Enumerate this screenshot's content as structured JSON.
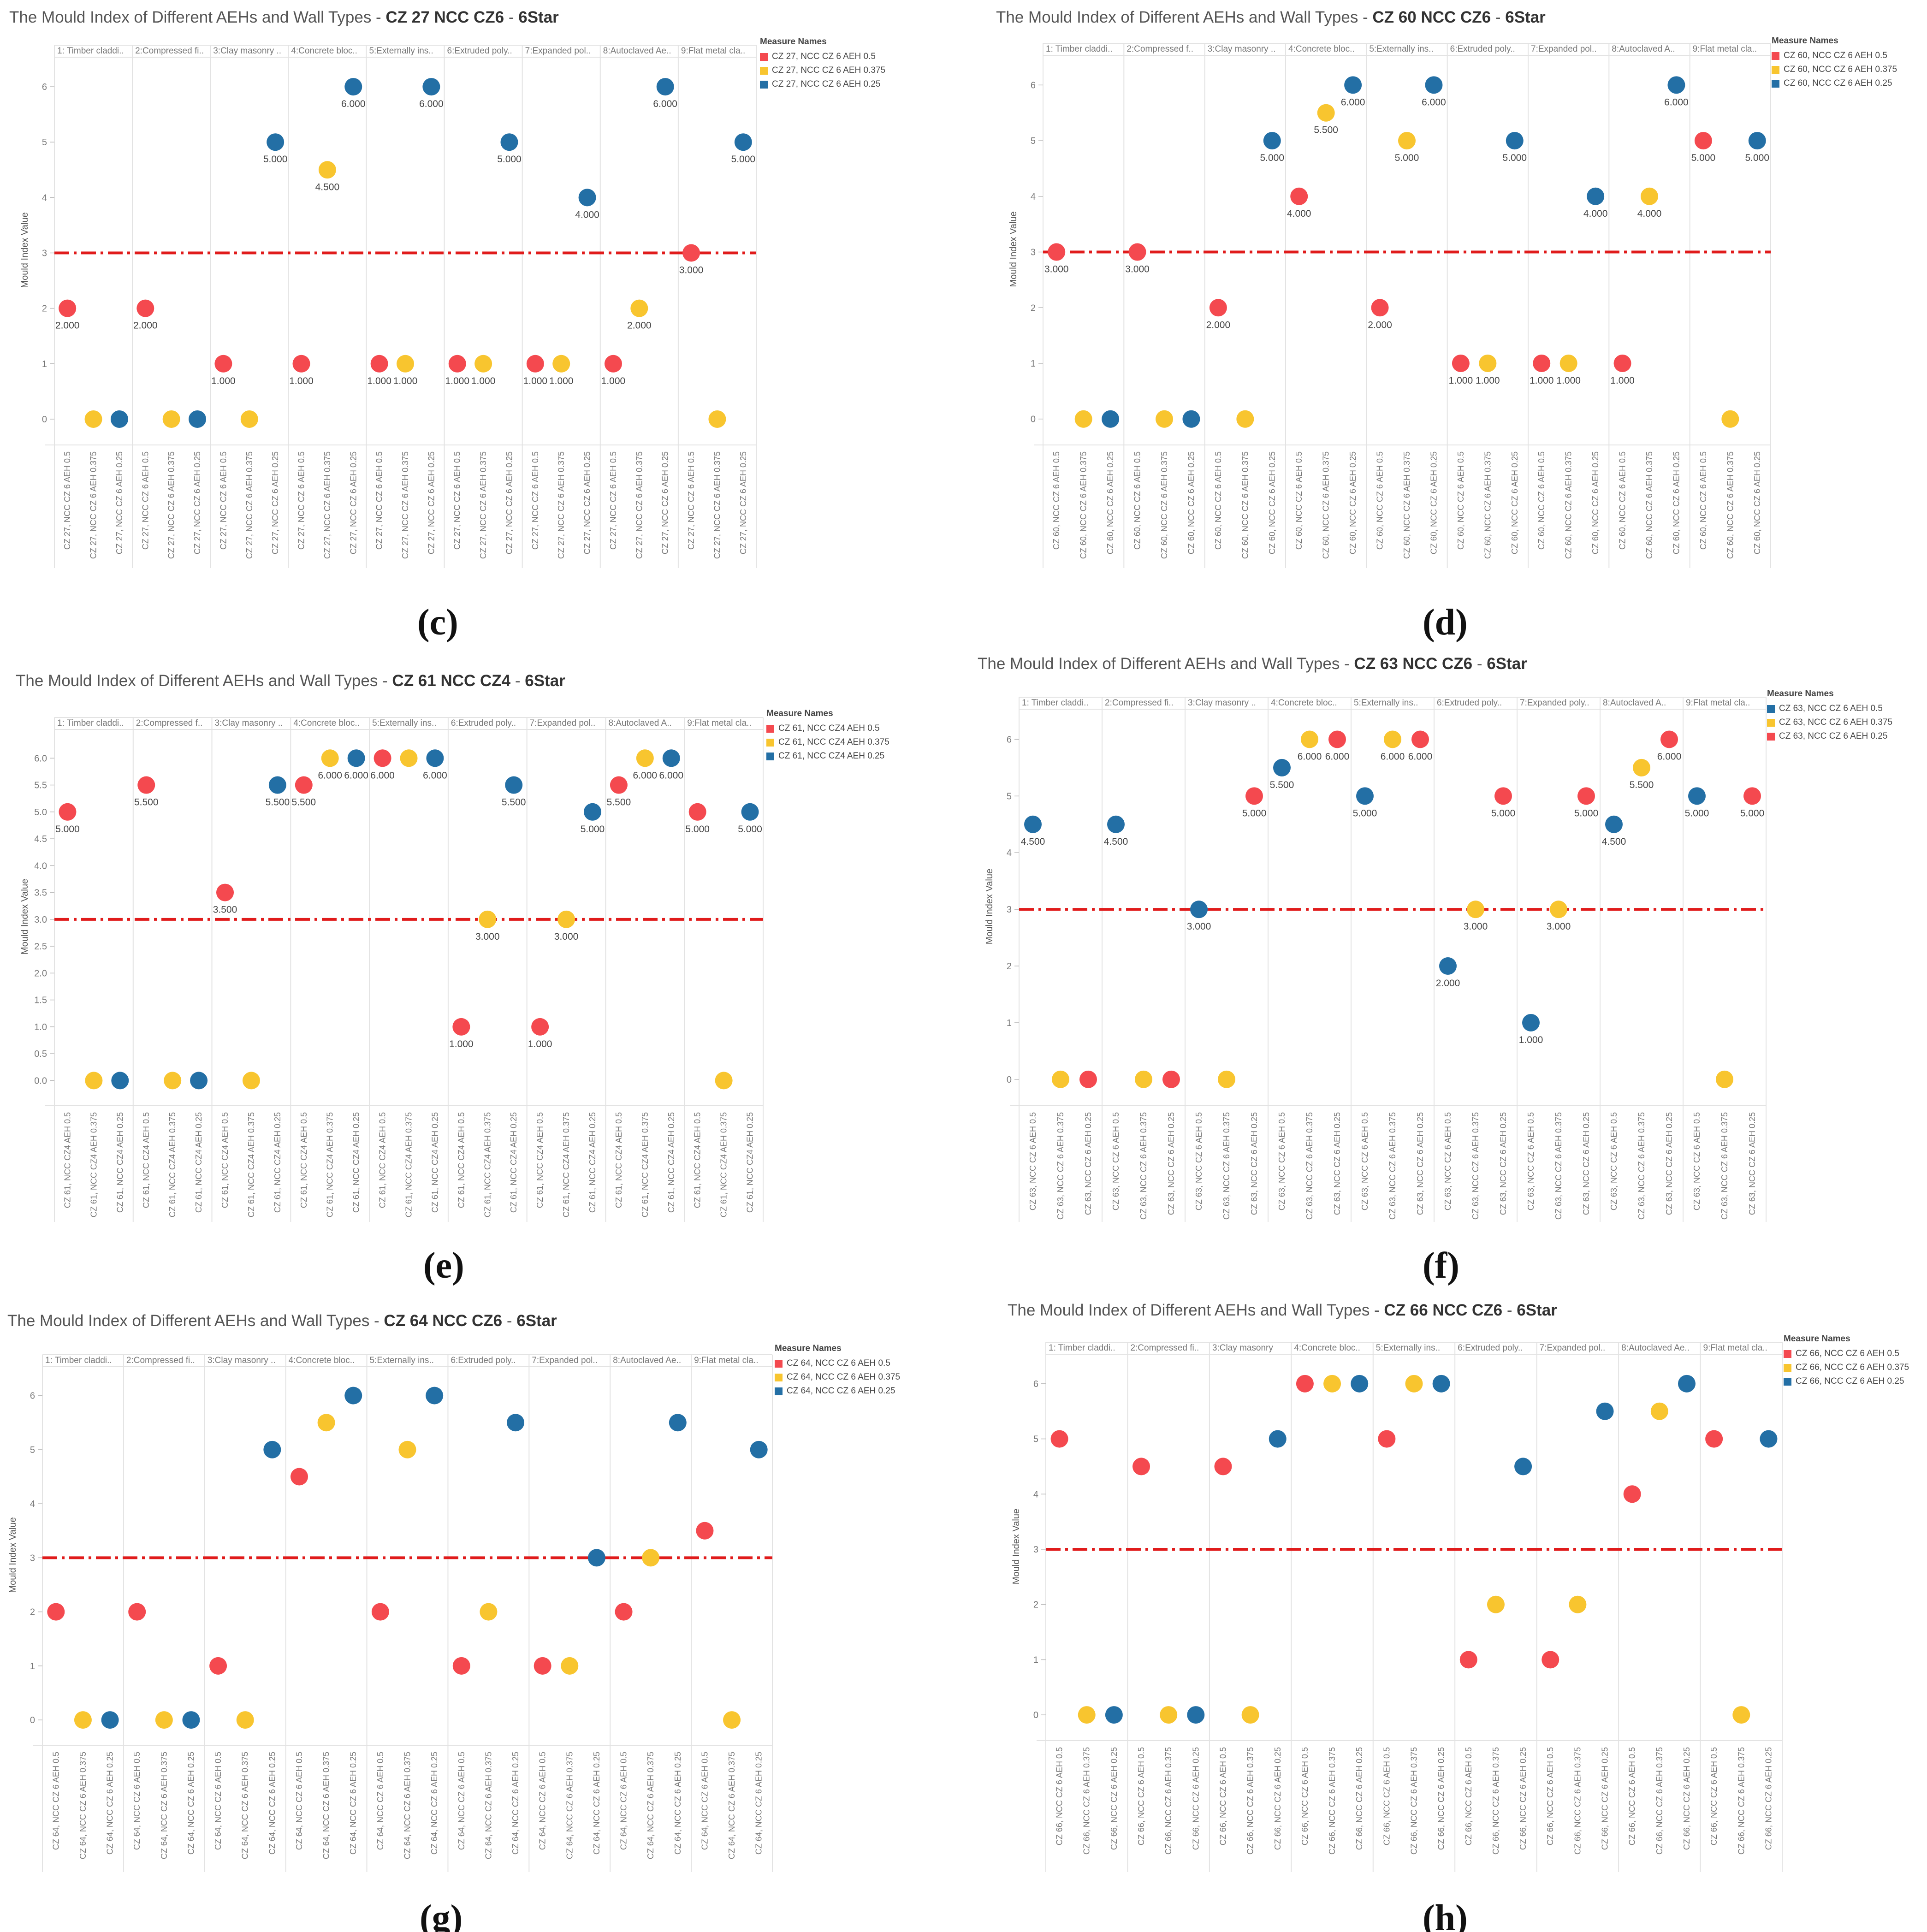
{
  "colors": {
    "red": "#f4494f",
    "yellow": "#f8c52f",
    "blue": "#236fa5",
    "threshold": "#e01b1b",
    "grid": "#e3e3e3",
    "axis_text": "#777777"
  },
  "categories": [
    "1: Timber claddi..",
    "2:Compressed fi..",
    "3:Clay masonry ..",
    "4:Concrete bloc..",
    "5:Externally ins..",
    "6:Extruded poly..",
    "7:Expanded pol..",
    "8:Autoclaved Ae..",
    "9:Flat metal cla.."
  ],
  "panels": [
    {
      "id": "c",
      "caption": "(c)",
      "title_prefix": "The Mould Index of Different AEHs and Wall Types - ",
      "title_code": "CZ 27 NCC CZ6",
      "title_sep": " - ",
      "title_star": "6Star",
      "ylabel": "Mould Index Value",
      "categories": [
        "1: Timber claddi..",
        "2:Compressed fi..",
        "3:Clay masonry ..",
        "4:Concrete bloc..",
        "5:Externally ins..",
        "6:Extruded poly..",
        "7:Expanded pol..",
        "8:Autoclaved Ae..",
        "9:Flat metal cla.."
      ],
      "yticks": [
        "0",
        "1",
        "2",
        "3",
        "4",
        "5",
        "6"
      ],
      "legend": {
        "title": "Measure Names",
        "items": [
          {
            "label": "CZ 27, NCC CZ 6 AEH 0.5",
            "color": "red"
          },
          {
            "label": "CZ 27, NCC CZ 6 AEH 0.375",
            "color": "yellow"
          },
          {
            "label": "CZ 27, NCC CZ 6 AEH 0.25",
            "color": "blue"
          }
        ]
      },
      "chart_data": {
        "type": "scatter",
        "title": "The Mould Index of Different AEHs and Wall Types - CZ 27 NCC CZ6 - 6Star",
        "ylabel": "Mould Index Value",
        "ylim": [
          -0.4,
          6.5
        ],
        "threshold": 3,
        "show_labels": true,
        "xlabels": [
          "CZ 27, NCC CZ 6 AEH 0.5",
          "CZ 27, NCC CZ 6 AEH 0.375",
          "CZ 27, NCC CZ 6 AEH 0.25"
        ],
        "series": [
          {
            "name": "CZ 27, NCC CZ 6 AEH 0.5",
            "color": "red",
            "values": [
              2,
              2,
              1,
              1,
              1,
              1,
              1,
              1,
              3
            ]
          },
          {
            "name": "CZ 27, NCC CZ 6 AEH 0.375",
            "color": "yellow",
            "values": [
              0,
              0,
              0,
              4.5,
              1,
              1,
              1,
              2,
              0
            ]
          },
          {
            "name": "CZ 27, NCC CZ 6 AEH 0.25",
            "color": "blue",
            "values": [
              0,
              0,
              5,
              6,
              6,
              5,
              4,
              6,
              5
            ]
          }
        ],
        "point_labels": [
          [
            "2.000",
            "2.000",
            "1.000",
            "1.000",
            "1.000",
            "1.000",
            "1.000",
            "1.000",
            "3.000"
          ],
          [
            "",
            "",
            "",
            "4.500",
            "1.000",
            "1.000",
            "1.000",
            "2.000",
            ""
          ],
          [
            "",
            "",
            "5.000",
            "6.000",
            "6.000",
            "5.000",
            "4.000",
            "6.000",
            "5.000"
          ]
        ]
      }
    },
    {
      "id": "d",
      "caption": "(d)",
      "title_prefix": "The Mould Index of Different AEHs and Wall Types - ",
      "title_code": "CZ 60 NCC CZ6",
      "title_sep": " - ",
      "title_star": "6Star",
      "ylabel": "Mould Index Value",
      "categories": [
        "1: Timber claddi..",
        "2:Compressed f..",
        "3:Clay masonry ..",
        "4:Concrete bloc..",
        "5:Externally ins..",
        "6:Extruded poly..",
        "7:Expanded pol..",
        "8:Autoclaved A..",
        "9:Flat metal cla.."
      ],
      "yticks": [
        "0",
        "1",
        "2",
        "3",
        "4",
        "5",
        "6"
      ],
      "legend": {
        "title": "Measure Names",
        "items": [
          {
            "label": "CZ 60, NCC CZ 6 AEH 0.5",
            "color": "red"
          },
          {
            "label": "CZ 60, NCC CZ 6 AEH 0.375",
            "color": "yellow"
          },
          {
            "label": "CZ 60, NCC CZ 6 AEH 0.25",
            "color": "blue"
          }
        ]
      },
      "chart_data": {
        "type": "scatter",
        "title": "The Mould Index of Different AEHs and Wall Types - CZ 60 NCC CZ6 - 6Star",
        "ylabel": "Mould Index Value",
        "ylim": [
          -0.4,
          6.5
        ],
        "threshold": 3,
        "show_labels": true,
        "xlabels": [
          "CZ 60, NCC CZ 6 AEH 0.5",
          "CZ 60, NCC CZ 6 AEH 0.375",
          "CZ 60, NCC CZ 6 AEH 0.25"
        ],
        "series": [
          {
            "name": "CZ 60, NCC CZ 6 AEH 0.5",
            "color": "red",
            "values": [
              3,
              3,
              2,
              4,
              2,
              1,
              1,
              1,
              5
            ]
          },
          {
            "name": "CZ 60, NCC CZ 6 AEH 0.375",
            "color": "yellow",
            "values": [
              0,
              0,
              0,
              5.5,
              5,
              1,
              1,
              4,
              0
            ]
          },
          {
            "name": "CZ 60, NCC CZ 6 AEH 0.25",
            "color": "blue",
            "values": [
              0,
              0,
              5,
              6,
              6,
              5,
              4,
              6,
              5
            ]
          }
        ],
        "point_labels": [
          [
            "3.000",
            "3.000",
            "2.000",
            "4.000",
            "2.000",
            "1.000",
            "1.000",
            "1.000",
            "5.000"
          ],
          [
            "",
            "",
            "",
            "5.500",
            "5.000",
            "1.000",
            "1.000",
            "4.000",
            ""
          ],
          [
            "",
            "",
            "5.000",
            "6.000",
            "6.000",
            "5.000",
            "4.000",
            "6.000",
            "5.000"
          ]
        ]
      }
    },
    {
      "id": "e",
      "caption": "(e)",
      "title_prefix": "The Mould Index of Different AEHs and Wall Types - ",
      "title_code": "CZ 61 NCC CZ4",
      "title_sep": " - ",
      "title_star": "6Star",
      "ylabel": "Mould Index Value",
      "categories": [
        "1: Timber claddi..",
        "2:Compressed f..",
        "3:Clay masonry ..",
        "4:Concrete bloc..",
        "5:Externally ins..",
        "6:Extruded poly..",
        "7:Expanded pol..",
        "8:Autoclaved A..",
        "9:Flat metal cla.."
      ],
      "yticks": [
        "0.0",
        "0.5",
        "1.0",
        "1.5",
        "2.0",
        "2.5",
        "3.0",
        "3.5",
        "4.0",
        "4.5",
        "5.0",
        "5.5",
        "6.0"
      ],
      "legend": {
        "title": "Measure Names",
        "items": [
          {
            "label": "CZ 61, NCC CZ4 AEH 0.5",
            "color": "red"
          },
          {
            "label": "CZ 61, NCC CZ4 AEH 0.375",
            "color": "yellow"
          },
          {
            "label": "CZ 61, NCC CZ4 AEH 0.25",
            "color": "blue"
          }
        ]
      },
      "chart_data": {
        "type": "scatter",
        "title": "The Mould Index of Different AEHs and Wall Types - CZ 61 NCC CZ4 - 6Star",
        "ylabel": "Mould Index Value",
        "ylim": [
          -0.4,
          6.5
        ],
        "threshold": 3,
        "show_labels": true,
        "xlabels": [
          "CZ 61, NCC CZ4 AEH 0.5",
          "CZ 61, NCC CZ4 AEH 0.375",
          "CZ 61, NCC CZ4 AEH 0.25"
        ],
        "series": [
          {
            "name": "CZ 61, NCC CZ4 AEH 0.5",
            "color": "red",
            "values": [
              5,
              5.5,
              3.5,
              5.5,
              6,
              1,
              1,
              5.5,
              5
            ]
          },
          {
            "name": "CZ 61, NCC CZ4 AEH 0.375",
            "color": "yellow",
            "values": [
              0,
              0,
              0,
              6,
              6,
              3,
              3,
              6,
              0
            ]
          },
          {
            "name": "CZ 61, NCC CZ4 AEH 0.25",
            "color": "blue",
            "values": [
              0,
              0,
              5.5,
              6,
              6,
              5.5,
              5,
              6,
              5
            ]
          }
        ],
        "point_labels": [
          [
            "5.000",
            "5.500",
            "3.500",
            "5.500",
            "6.000",
            "1.000",
            "1.000",
            "5.500",
            "5.000"
          ],
          [
            "",
            "",
            "",
            "6.000",
            "",
            "3.000",
            "3.000",
            "6.000",
            ""
          ],
          [
            "",
            "",
            "5.500",
            "6.000",
            "6.000",
            "5.500",
            "5.000",
            "6.000",
            "5.000"
          ]
        ]
      }
    },
    {
      "id": "f",
      "caption": "(f)",
      "title_prefix": "The Mould Index of Different AEHs and Wall Types - ",
      "title_code": "CZ 63 NCC CZ6",
      "title_sep": " - ",
      "title_star": "6Star",
      "ylabel": "Mould Index Value",
      "categories": [
        "1: Timber claddi..",
        "2:Compressed fi..",
        "3:Clay masonry ..",
        "4:Concrete bloc..",
        "5:Externally ins..",
        "6:Extruded poly..",
        "7:Expanded poly..",
        "8:Autoclaved A..",
        "9:Flat metal cla.."
      ],
      "yticks": [
        "0",
        "1",
        "2",
        "3",
        "4",
        "5",
        "6"
      ],
      "legend": {
        "title": "Measure Names",
        "items": [
          {
            "label": "CZ 63, NCC CZ 6 AEH 0.5",
            "color": "blue"
          },
          {
            "label": "CZ 63, NCC CZ 6 AEH 0.375",
            "color": "yellow"
          },
          {
            "label": "CZ 63, NCC CZ 6 AEH 0.25",
            "color": "red"
          }
        ]
      },
      "chart_data": {
        "type": "scatter",
        "title": "The Mould Index of Different AEHs and Wall Types - CZ 63 NCC CZ6 - 6Star",
        "ylabel": "Mould Index Value",
        "ylim": [
          -0.4,
          6.5
        ],
        "threshold": 3,
        "show_labels": true,
        "xlabels": [
          "CZ 63, NCC CZ 6 AEH 0.5",
          "CZ 63, NCC CZ 6 AEH 0.375",
          "CZ 63, NCC CZ 6 AEH 0.25"
        ],
        "series": [
          {
            "name": "CZ 63, NCC CZ 6 AEH 0.5",
            "color": "blue",
            "values": [
              4.5,
              4.5,
              3,
              5.5,
              5,
              2,
              1,
              4.5,
              5
            ]
          },
          {
            "name": "CZ 63, NCC CZ 6 AEH 0.375",
            "color": "yellow",
            "values": [
              0,
              0,
              0,
              6,
              6,
              3,
              3,
              5.5,
              0
            ]
          },
          {
            "name": "CZ 63, NCC CZ 6 AEH 0.25",
            "color": "red",
            "values": [
              0,
              0,
              5,
              6,
              6,
              5,
              5,
              6,
              5
            ]
          }
        ],
        "point_labels": [
          [
            "4.500",
            "4.500",
            "3.000",
            "5.500",
            "5.000",
            "2.000",
            "1.000",
            "4.500",
            "5.000"
          ],
          [
            "",
            "",
            "",
            "6.000",
            "6.000",
            "3.000",
            "3.000",
            "5.500",
            ""
          ],
          [
            "",
            "",
            "5.000",
            "6.000",
            "6.000",
            "5.000",
            "5.000",
            "6.000",
            "5.000"
          ]
        ]
      }
    },
    {
      "id": "g",
      "caption": "(g)",
      "title_prefix": "The Mould Index of Different AEHs and Wall Types - ",
      "title_code": "CZ 64 NCC CZ6",
      "title_sep": " - ",
      "title_star": "6Star",
      "ylabel": "Mould Index Value",
      "categories": [
        "1: Timber claddi..",
        "2:Compressed fi..",
        "3:Clay masonry ..",
        "4:Concrete bloc..",
        "5:Externally ins..",
        "6:Extruded poly..",
        "7:Expanded pol..",
        "8:Autoclaved Ae..",
        "9:Flat metal cla.."
      ],
      "yticks": [
        "0",
        "1",
        "2",
        "3",
        "4",
        "5",
        "6"
      ],
      "legend": {
        "title": "Measure Names",
        "items": [
          {
            "label": "CZ 64, NCC CZ 6 AEH 0.5",
            "color": "red"
          },
          {
            "label": "CZ 64, NCC CZ 6 AEH 0.375",
            "color": "yellow"
          },
          {
            "label": "CZ 64, NCC CZ 6 AEH 0.25",
            "color": "blue"
          }
        ]
      },
      "chart_data": {
        "type": "scatter",
        "title": "The Mould Index of Different AEHs and Wall Types - CZ 64 NCC CZ6 - 6Star",
        "ylabel": "Mould Index Value",
        "ylim": [
          -0.4,
          6.5
        ],
        "threshold": 3,
        "show_labels": false,
        "xlabels": [
          "CZ 64, NCC CZ 6 AEH 0.5",
          "CZ 64, NCC CZ 6 AEH 0.375",
          "CZ 64, NCC CZ 6 AEH 0.25"
        ],
        "series": [
          {
            "name": "CZ 64, NCC CZ 6 AEH 0.5",
            "color": "red",
            "values": [
              2,
              2,
              1,
              4.5,
              2,
              1,
              1,
              2,
              3.5
            ]
          },
          {
            "name": "CZ 64, NCC CZ 6 AEH 0.375",
            "color": "yellow",
            "values": [
              0,
              0,
              0,
              5.5,
              5,
              2,
              1,
              3,
              0
            ]
          },
          {
            "name": "CZ 64, NCC CZ 6 AEH 0.25",
            "color": "blue",
            "values": [
              0,
              0,
              5,
              6,
              6,
              5.5,
              3,
              5.5,
              5
            ]
          }
        ]
      }
    },
    {
      "id": "h",
      "caption": "(h)",
      "title_prefix": "The Mould Index of Different AEHs and Wall Types - ",
      "title_code": "CZ 66 NCC CZ6",
      "title_sep": " - ",
      "title_star": "6Star",
      "ylabel": "Mould Index Value",
      "categories": [
        "1: Timber claddi..",
        "2:Compressed fi..",
        "3:Clay masonry",
        "4:Concrete bloc..",
        "5:Externally ins..",
        "6:Extruded poly..",
        "7:Expanded pol..",
        "8:Autoclaved Ae..",
        "9:Flat metal cla.."
      ],
      "yticks": [
        "0",
        "1",
        "2",
        "3",
        "4",
        "5",
        "6"
      ],
      "legend": {
        "title": "Measure Names",
        "items": [
          {
            "label": "CZ 66, NCC CZ 6 AEH 0.5",
            "color": "red"
          },
          {
            "label": "CZ 66, NCC CZ 6 AEH 0.375",
            "color": "yellow"
          },
          {
            "label": "CZ 66, NCC CZ 6 AEH 0.25",
            "color": "blue"
          }
        ]
      },
      "chart_data": {
        "type": "scatter",
        "title": "The Mould Index of Different AEHs and Wall Types - CZ 66 NCC CZ6 - 6Star",
        "ylabel": "Mould Index Value",
        "ylim": [
          -0.4,
          6.5
        ],
        "threshold": 3,
        "show_labels": false,
        "xlabels": [
          "CZ 66, NCC CZ 6 AEH 0.5",
          "CZ 66, NCC CZ 6 AEH 0.375",
          "CZ 66, NCC CZ 6 AEH 0.25"
        ],
        "series": [
          {
            "name": "CZ 66, NCC CZ 6 AEH 0.5",
            "color": "red",
            "values": [
              5,
              4.5,
              4.5,
              6,
              5,
              1,
              1,
              4,
              5
            ]
          },
          {
            "name": "CZ 66, NCC CZ 6 AEH 0.375",
            "color": "yellow",
            "values": [
              0,
              0,
              0,
              6,
              6,
              2,
              2,
              5.5,
              0
            ]
          },
          {
            "name": "CZ 66, NCC CZ 6 AEH 0.25",
            "color": "blue",
            "values": [
              0,
              0,
              5,
              6,
              6,
              4.5,
              5.5,
              6,
              5
            ]
          }
        ]
      }
    }
  ]
}
